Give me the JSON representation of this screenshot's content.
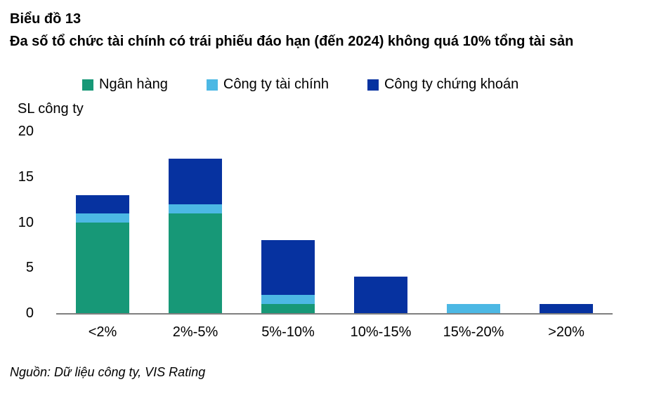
{
  "header": {
    "figure_number": "Biểu đồ 13",
    "title": "Đa số tổ chức tài chính có trái phiếu đáo hạn (đến 2024) không quá 10% tổng tài sản"
  },
  "chart_data": {
    "type": "bar",
    "stacked": true,
    "categories": [
      "<2%",
      "2%-5%",
      "5%-10%",
      "10%-15%",
      "15%-20%",
      ">20%"
    ],
    "series": [
      {
        "name": "Ngân hàng",
        "color": "#179877",
        "values": [
          10,
          11,
          1,
          0,
          0,
          0
        ]
      },
      {
        "name": "Công ty tài chính",
        "color": "#4CB8E4",
        "values": [
          1,
          1,
          1,
          0,
          1,
          0
        ]
      },
      {
        "name": "Công ty chứng khoán",
        "color": "#0632A0",
        "values": [
          2,
          5,
          6,
          4,
          0,
          1
        ]
      }
    ],
    "totals": [
      13,
      17,
      8,
      4,
      1,
      1
    ],
    "ylabel": "SL công ty",
    "xlabel": "",
    "yticks": [
      0,
      5,
      10,
      15,
      20
    ],
    "ylim": [
      0,
      20
    ],
    "grid": false,
    "legend_position": "top",
    "axis_line_color": "#7f7f7f"
  },
  "footer": {
    "source": "Nguồn: Dữ liệu công ty, VIS Rating"
  }
}
